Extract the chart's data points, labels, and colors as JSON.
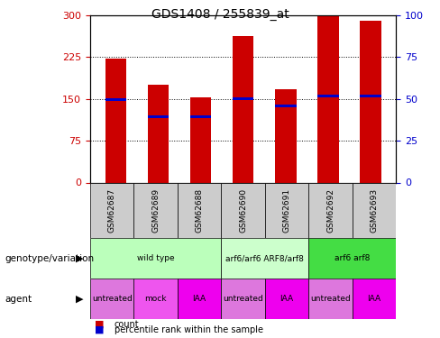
{
  "title": "GDS1408 / 255839_at",
  "samples": [
    "GSM62687",
    "GSM62689",
    "GSM62688",
    "GSM62690",
    "GSM62691",
    "GSM62692",
    "GSM62693"
  ],
  "count_values": [
    222,
    175,
    153,
    263,
    168,
    298,
    290
  ],
  "percentile_values": [
    148,
    118,
    118,
    150,
    138,
    155,
    155
  ],
  "ylim_left": [
    0,
    300
  ],
  "ylim_right": [
    0,
    100
  ],
  "yticks_left": [
    0,
    75,
    150,
    225,
    300
  ],
  "yticks_right": [
    0,
    25,
    50,
    75,
    100
  ],
  "bar_color": "#cc0000",
  "percentile_color": "#0000cc",
  "bar_width": 0.5,
  "genotype_groups": [
    {
      "label": "wild type",
      "spans": [
        0,
        3
      ],
      "color": "#bbffbb"
    },
    {
      "label": "arf6/arf6 ARF8/arf8",
      "spans": [
        3,
        5
      ],
      "color": "#ccffcc"
    },
    {
      "label": "arf6 arf8",
      "spans": [
        5,
        7
      ],
      "color": "#44dd44"
    }
  ],
  "agent_labels": [
    "untreated",
    "mock",
    "IAA",
    "untreated",
    "IAA",
    "untreated",
    "IAA"
  ],
  "agent_colors": [
    "#dd77dd",
    "#ee55ee",
    "#ee00ee",
    "#dd77dd",
    "#ee00ee",
    "#dd77dd",
    "#ee00ee"
  ],
  "grid_color": "black",
  "tick_label_color_left": "#cc0000",
  "tick_label_color_right": "#0000cc",
  "background_color": "#ffffff",
  "plot_bg_color": "#ffffff",
  "legend_count_label": "count",
  "legend_pct_label": "percentile rank within the sample",
  "sample_box_color": "#cccccc"
}
